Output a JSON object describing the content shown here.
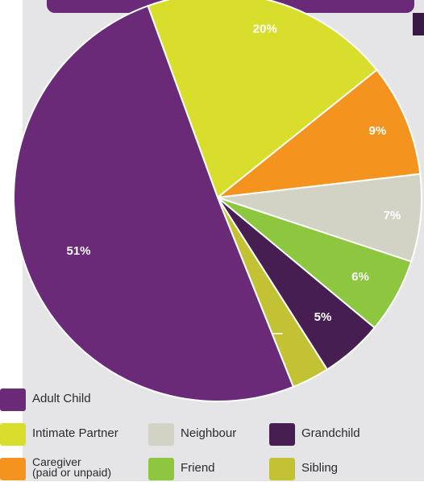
{
  "colors": {
    "panel": "#e5e5e7",
    "banner": "#6a2a78",
    "adult_child": "#6a2a78",
    "intimate_partner": "#d9de2c",
    "caregiver": "#f5931f",
    "neighbour": "#d3d3c5",
    "friend": "#8dc63f",
    "grandchild": "#461e52",
    "sibling": "#c2c234"
  },
  "chart_data": {
    "type": "pie",
    "categories": [
      "Adult Child",
      "Intimate Partner",
      "Caregiver (paid or unpaid)",
      "Neighbour",
      "Friend",
      "Grandchild",
      "Sibling"
    ],
    "values": [
      51,
      20,
      9,
      7,
      6,
      5,
      3
    ],
    "labels": [
      "51%",
      "20%",
      "9%",
      "7%",
      "6%",
      "5%",
      "3%"
    ],
    "colors": [
      "#6a2a78",
      "#d9de2c",
      "#f5931f",
      "#d3d3c5",
      "#8dc63f",
      "#461e52",
      "#c2c234"
    ],
    "legend_placement": "bottom"
  },
  "legend": [
    {
      "label": "Adult Child",
      "color": "#6a2a78"
    },
    {
      "label": "Intimate Partner",
      "color": "#d9de2c"
    },
    {
      "label": "Neighbour",
      "color": "#d3d3c5"
    },
    {
      "label": "Grandchild",
      "color": "#461e52"
    },
    {
      "label": "Caregiver\n(paid or unpaid)",
      "color": "#f5931f"
    },
    {
      "label": "Friend",
      "color": "#8dc63f"
    },
    {
      "label": "Sibling",
      "color": "#c2c234"
    }
  ]
}
